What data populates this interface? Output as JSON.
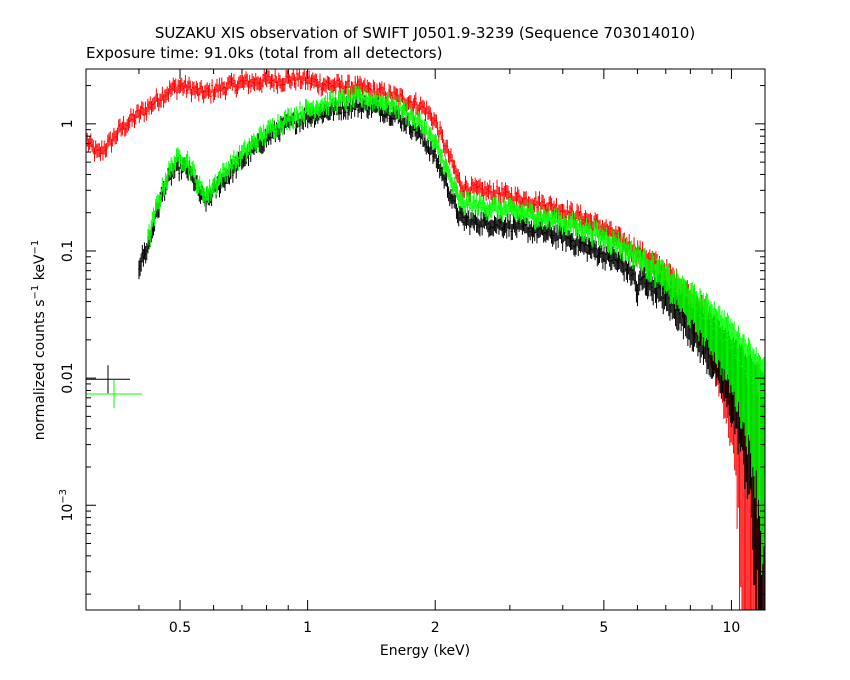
{
  "chart_data": {
    "type": "scatter",
    "title": "SUZAKU XIS observation of SWIFT J0501.9-3239 (Sequence 703014010)",
    "subtitle": "Exposure time: 91.0ks (total from all detectors)",
    "xlabel": "Energy (keV)",
    "ylabel": "normalized counts s-1 keV-1",
    "ylabel_parts": {
      "pre": "normalized counts s",
      "sup1": "−1",
      "mid": " keV",
      "sup2": "−1"
    },
    "x_scale": "log",
    "y_scale": "log",
    "xlim": [
      0.3,
      12
    ],
    "ylim": [
      0.00015,
      2.7
    ],
    "x_ticks": [
      {
        "value": 0.5,
        "label": "0.5"
      },
      {
        "value": 1,
        "label": "1"
      },
      {
        "value": 2,
        "label": "2"
      },
      {
        "value": 5,
        "label": "5"
      },
      {
        "value": 10,
        "label": "10"
      }
    ],
    "y_ticks": [
      {
        "value": 1,
        "label": "1"
      },
      {
        "value": 0.1,
        "label": "0.1"
      },
      {
        "value": 0.01,
        "label": "0.01"
      },
      {
        "value": 0.001,
        "label_base": "10",
        "label_exp": "−3"
      }
    ],
    "grid": false,
    "legend": "none",
    "series": [
      {
        "color": "#ff0000",
        "points": [
          [
            0.3,
            0.75
          ],
          [
            0.32,
            0.58
          ],
          [
            0.34,
            0.7
          ],
          [
            0.36,
            0.9
          ],
          [
            0.38,
            1.05
          ],
          [
            0.4,
            1.2
          ],
          [
            0.42,
            1.35
          ],
          [
            0.45,
            1.65
          ],
          [
            0.48,
            1.9
          ],
          [
            0.5,
            2.0
          ],
          [
            0.52,
            1.95
          ],
          [
            0.55,
            1.8
          ],
          [
            0.58,
            1.75
          ],
          [
            0.6,
            1.85
          ],
          [
            0.65,
            2.0
          ],
          [
            0.7,
            2.1
          ],
          [
            0.75,
            2.15
          ],
          [
            0.8,
            2.2
          ],
          [
            0.85,
            2.2
          ],
          [
            0.9,
            2.25
          ],
          [
            0.95,
            2.3
          ],
          [
            1.0,
            2.2
          ],
          [
            1.1,
            2.05
          ],
          [
            1.2,
            2.0
          ],
          [
            1.3,
            1.95
          ],
          [
            1.4,
            1.85
          ],
          [
            1.5,
            1.75
          ],
          [
            1.6,
            1.65
          ],
          [
            1.7,
            1.55
          ],
          [
            1.8,
            1.45
          ],
          [
            1.9,
            1.3
          ],
          [
            2.0,
            1.05
          ],
          [
            2.1,
            0.7
          ],
          [
            2.2,
            0.48
          ],
          [
            2.3,
            0.33
          ],
          [
            2.5,
            0.3
          ],
          [
            2.8,
            0.29
          ],
          [
            3.0,
            0.27
          ],
          [
            3.5,
            0.24
          ],
          [
            4.0,
            0.21
          ],
          [
            4.5,
            0.18
          ],
          [
            5.0,
            0.15
          ],
          [
            5.5,
            0.12
          ],
          [
            6.0,
            0.1
          ],
          [
            6.5,
            0.08
          ],
          [
            7.0,
            0.065
          ],
          [
            7.5,
            0.05
          ],
          [
            8.0,
            0.04
          ],
          [
            8.5,
            0.03
          ],
          [
            9.0,
            0.022
          ],
          [
            9.5,
            0.015
          ],
          [
            10.0,
            0.01
          ],
          [
            10.5,
            0.006
          ],
          [
            11.0,
            0.004
          ],
          [
            11.5,
            0.003
          ],
          [
            12.0,
            0.002
          ]
        ]
      },
      {
        "color": "#000000",
        "points": [
          [
            0.4,
            0.078
          ],
          [
            0.42,
            0.11
          ],
          [
            0.44,
            0.2
          ],
          [
            0.46,
            0.32
          ],
          [
            0.48,
            0.42
          ],
          [
            0.5,
            0.46
          ],
          [
            0.52,
            0.44
          ],
          [
            0.54,
            0.36
          ],
          [
            0.56,
            0.27
          ],
          [
            0.58,
            0.25
          ],
          [
            0.6,
            0.3
          ],
          [
            0.65,
            0.4
          ],
          [
            0.7,
            0.52
          ],
          [
            0.75,
            0.65
          ],
          [
            0.8,
            0.78
          ],
          [
            0.85,
            0.9
          ],
          [
            0.9,
            1.0
          ],
          [
            1.0,
            1.15
          ],
          [
            1.1,
            1.25
          ],
          [
            1.2,
            1.35
          ],
          [
            1.3,
            1.4
          ],
          [
            1.4,
            1.38
          ],
          [
            1.5,
            1.3
          ],
          [
            1.6,
            1.2
          ],
          [
            1.7,
            1.05
          ],
          [
            1.8,
            0.9
          ],
          [
            1.9,
            0.72
          ],
          [
            2.0,
            0.55
          ],
          [
            2.1,
            0.38
          ],
          [
            2.2,
            0.25
          ],
          [
            2.3,
            0.18
          ],
          [
            2.5,
            0.17
          ],
          [
            2.8,
            0.165
          ],
          [
            3.0,
            0.16
          ],
          [
            3.5,
            0.145
          ],
          [
            4.0,
            0.13
          ],
          [
            4.5,
            0.11
          ],
          [
            5.0,
            0.095
          ],
          [
            5.5,
            0.08
          ],
          [
            5.9,
            0.065
          ],
          [
            6.0,
            0.045
          ],
          [
            6.1,
            0.062
          ],
          [
            6.5,
            0.055
          ],
          [
            7.0,
            0.045
          ],
          [
            7.5,
            0.037
          ],
          [
            8.0,
            0.03
          ],
          [
            9.0,
            0.02
          ],
          [
            10.0,
            0.013
          ],
          [
            11.0,
            0.008
          ],
          [
            12.0,
            0.005
          ]
        ]
      },
      {
        "color": "#00ff00",
        "points": [
          [
            0.42,
            0.12
          ],
          [
            0.44,
            0.22
          ],
          [
            0.46,
            0.35
          ],
          [
            0.48,
            0.48
          ],
          [
            0.5,
            0.55
          ],
          [
            0.52,
            0.52
          ],
          [
            0.54,
            0.4
          ],
          [
            0.56,
            0.3
          ],
          [
            0.58,
            0.28
          ],
          [
            0.6,
            0.33
          ],
          [
            0.65,
            0.45
          ],
          [
            0.7,
            0.58
          ],
          [
            0.75,
            0.72
          ],
          [
            0.8,
            0.86
          ],
          [
            0.85,
            1.0
          ],
          [
            0.9,
            1.1
          ],
          [
            1.0,
            1.3
          ],
          [
            1.1,
            1.45
          ],
          [
            1.2,
            1.55
          ],
          [
            1.3,
            1.6
          ],
          [
            1.4,
            1.58
          ],
          [
            1.5,
            1.5
          ],
          [
            1.6,
            1.4
          ],
          [
            1.7,
            1.25
          ],
          [
            1.8,
            1.1
          ],
          [
            1.9,
            0.9
          ],
          [
            2.0,
            0.7
          ],
          [
            2.1,
            0.5
          ],
          [
            2.2,
            0.33
          ],
          [
            2.3,
            0.24
          ],
          [
            2.5,
            0.23
          ],
          [
            2.8,
            0.22
          ],
          [
            3.0,
            0.21
          ],
          [
            3.5,
            0.19
          ],
          [
            4.0,
            0.17
          ],
          [
            4.5,
            0.15
          ],
          [
            5.0,
            0.13
          ],
          [
            5.5,
            0.11
          ],
          [
            6.0,
            0.09
          ],
          [
            6.5,
            0.075
          ],
          [
            7.0,
            0.06
          ],
          [
            7.5,
            0.05
          ],
          [
            8.0,
            0.04
          ],
          [
            9.0,
            0.028
          ],
          [
            10.0,
            0.018
          ],
          [
            11.0,
            0.011
          ],
          [
            12.0,
            0.007
          ]
        ]
      }
    ],
    "legend_markers": [
      {
        "color": "#000000",
        "y": 0.0098
      },
      {
        "color": "#00ff00",
        "y": 0.0075
      }
    ]
  }
}
